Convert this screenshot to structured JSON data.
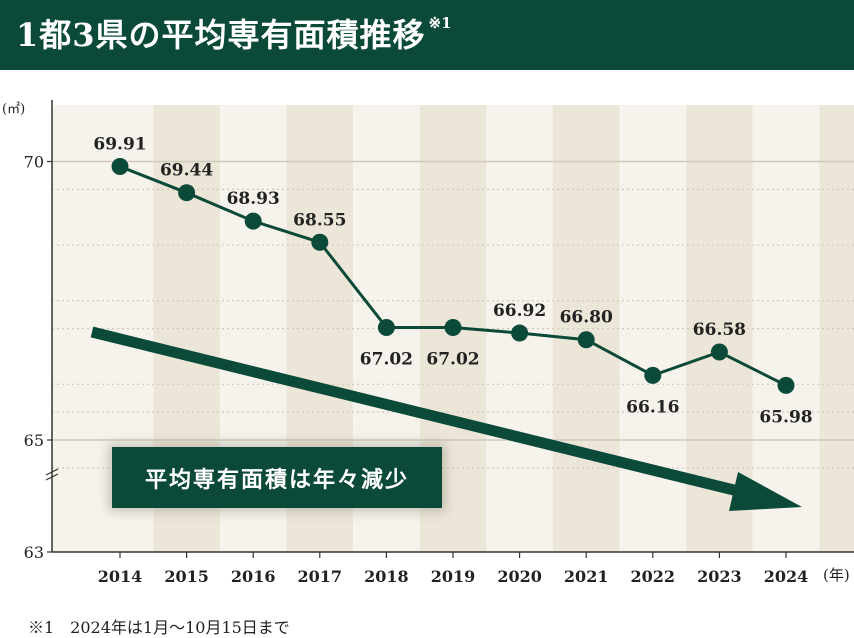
{
  "header": {
    "title": "1都3県の平均専有面積推移",
    "title_note": "※1",
    "background_color": "#0b4a39"
  },
  "chart_data": {
    "type": "line",
    "title": "1都3県の平均専有面積推移",
    "y_unit": "(㎡)",
    "x_unit": "(年)",
    "categories": [
      "2014",
      "2015",
      "2016",
      "2017",
      "2018",
      "2019",
      "2020",
      "2021",
      "2022",
      "2023",
      "2024"
    ],
    "series": [
      {
        "values": [
          69.91,
          69.44,
          68.93,
          68.55,
          67.02,
          67.02,
          66.92,
          66.8,
          66.16,
          66.58,
          65.98
        ],
        "labels": [
          "69.91",
          "69.44",
          "68.93",
          "68.55",
          "67.02",
          "67.02",
          "66.92",
          "66.80",
          "66.16",
          "66.58",
          "65.98"
        ],
        "color": "#0b4a39"
      }
    ],
    "y_ticks": [
      {
        "value": 63,
        "label": "63"
      },
      {
        "value": 65,
        "label": "65"
      },
      {
        "value": 70,
        "label": "70"
      }
    ],
    "y_axis_break": true,
    "grid": true,
    "colors": {
      "line": "#0b4a39",
      "band_light": "#f5f3ec",
      "band_dark": "#ece6d8",
      "gridline": "#cfcabb"
    },
    "annotation": {
      "text": "平均専有面積は年々減少",
      "trend": "decreasing"
    }
  },
  "footnote": "※1　2024年は1月～10月15日まで"
}
